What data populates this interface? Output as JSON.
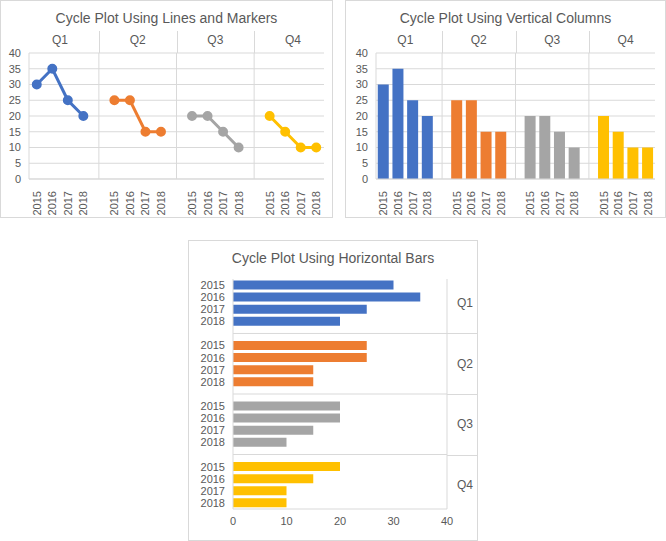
{
  "chart_data": [
    {
      "type": "line",
      "title": "Cycle Plot Using Lines and Markers",
      "categories": [
        "2015",
        "2016",
        "2017",
        "2018"
      ],
      "series": [
        {
          "name": "Q1",
          "color": "#4472c4",
          "values": [
            30,
            35,
            25,
            20
          ]
        },
        {
          "name": "Q2",
          "color": "#ed7d31",
          "values": [
            25,
            25,
            15,
            15
          ]
        },
        {
          "name": "Q3",
          "color": "#a5a5a5",
          "values": [
            20,
            20,
            15,
            10
          ]
        },
        {
          "name": "Q4",
          "color": "#ffc000",
          "values": [
            20,
            15,
            10,
            10
          ]
        }
      ],
      "ylim": [
        0,
        40
      ],
      "yticks": [
        0,
        5,
        10,
        15,
        20,
        25,
        30,
        35,
        40
      ],
      "grid": true,
      "marker": "circle"
    },
    {
      "type": "bar",
      "title": "Cycle Plot Using Vertical Columns",
      "categories": [
        "2015",
        "2016",
        "2017",
        "2018"
      ],
      "series": [
        {
          "name": "Q1",
          "color": "#4472c4",
          "values": [
            30,
            35,
            25,
            20
          ]
        },
        {
          "name": "Q2",
          "color": "#ed7d31",
          "values": [
            25,
            25,
            15,
            15
          ]
        },
        {
          "name": "Q3",
          "color": "#a5a5a5",
          "values": [
            20,
            20,
            15,
            10
          ]
        },
        {
          "name": "Q4",
          "color": "#ffc000",
          "values": [
            20,
            15,
            10,
            10
          ]
        }
      ],
      "ylim": [
        0,
        40
      ],
      "yticks": [
        0,
        5,
        10,
        15,
        20,
        25,
        30,
        35,
        40
      ],
      "grid": true
    },
    {
      "type": "bar",
      "orientation": "horizontal",
      "title": "Cycle Plot Using Horizontal Bars",
      "categories": [
        "2015",
        "2016",
        "2017",
        "2018"
      ],
      "series": [
        {
          "name": "Q1",
          "color": "#4472c4",
          "values": [
            30,
            35,
            25,
            20
          ]
        },
        {
          "name": "Q2",
          "color": "#ed7d31",
          "values": [
            25,
            25,
            15,
            15
          ]
        },
        {
          "name": "Q3",
          "color": "#a5a5a5",
          "values": [
            20,
            20,
            15,
            10
          ]
        },
        {
          "name": "Q4",
          "color": "#ffc000",
          "values": [
            20,
            15,
            10,
            10
          ]
        }
      ],
      "xlim": [
        0,
        40
      ],
      "xticks": [
        0,
        10,
        20,
        30,
        40
      ],
      "grid": false
    }
  ]
}
